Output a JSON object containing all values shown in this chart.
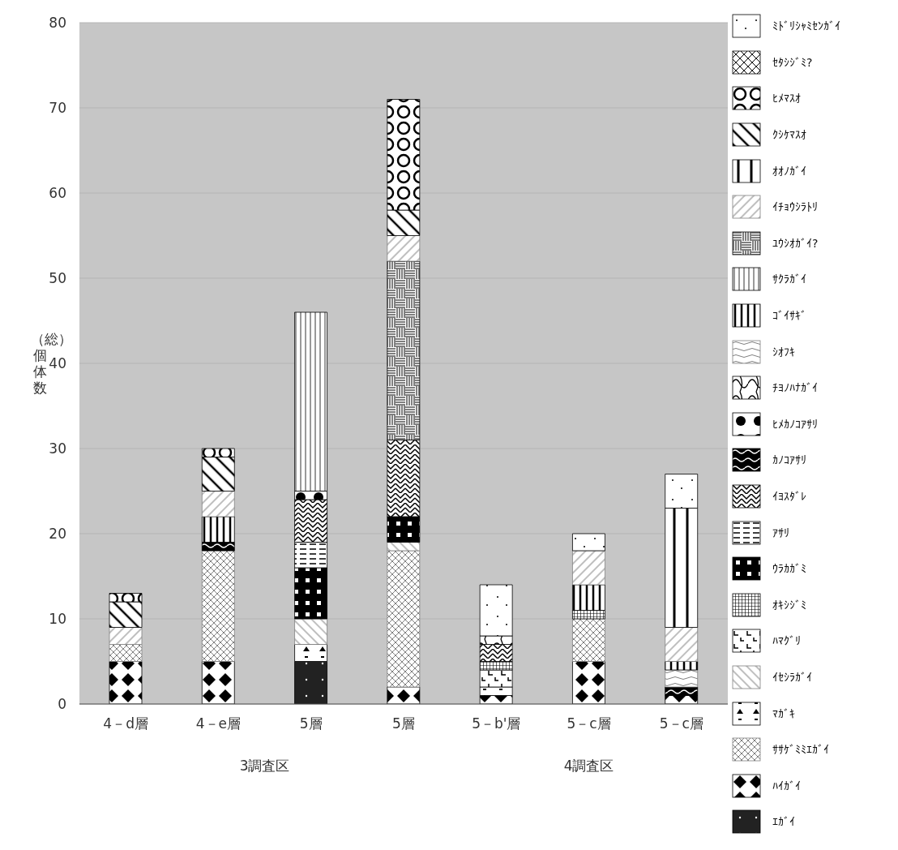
{
  "chart_data": {
    "type": "bar",
    "stacked": true,
    "ylabel": "（総）個体数",
    "categories": [
      "4－d層",
      "4－e層",
      "5層",
      "5層",
      "5－b'層",
      "5－c層",
      "5－c層"
    ],
    "annotations": [
      "3調査区",
      "4調査区"
    ],
    "ylim": [
      0,
      80
    ],
    "yticks": [
      0,
      10,
      20,
      30,
      40,
      50,
      60,
      70,
      80
    ],
    "grid": "y",
    "legend": "right",
    "series": [
      {
        "name": "ｴｶﾞｲ",
        "color": "#000000",
        "values": [
          null,
          null,
          5,
          null,
          null,
          null,
          null
        ]
      },
      {
        "name": "ﾊｲｶﾞｲ",
        "color": "#000000",
        "values": [
          5,
          5,
          null,
          2,
          1,
          5,
          1
        ]
      },
      {
        "name": "ｻｻｹﾞﾐﾐｴｶﾞｲ",
        "color": "#808080",
        "values": [
          2,
          13,
          null,
          16,
          null,
          5,
          null
        ]
      },
      {
        "name": "ﾏｶﾞｷ",
        "color": "#000000",
        "values": [
          null,
          null,
          2,
          null,
          1,
          null,
          null
        ]
      },
      {
        "name": "ｲｾｼﾗｶﾞｲ",
        "color": "#808080",
        "values": [
          null,
          null,
          3,
          1,
          null,
          null,
          null
        ]
      },
      {
        "name": "ﾊﾏｸﾞﾘ",
        "color": "#000000",
        "values": [
          null,
          null,
          null,
          null,
          2,
          null,
          null
        ]
      },
      {
        "name": "ｵｷｼｼﾞﾐ",
        "color": "#000000",
        "values": [
          null,
          null,
          null,
          null,
          1,
          1,
          null
        ]
      },
      {
        "name": "ｳﾗｶｶﾞﾐ",
        "color": "#000000",
        "values": [
          null,
          null,
          6,
          3,
          null,
          null,
          null
        ]
      },
      {
        "name": "ｱｻﾘ",
        "color": "#000000",
        "values": [
          null,
          null,
          3,
          null,
          null,
          null,
          null
        ]
      },
      {
        "name": "ｲﾖｽﾀﾞﾚ",
        "color": "#000000",
        "values": [
          null,
          null,
          5,
          9,
          2,
          null,
          null
        ]
      },
      {
        "name": "ｶﾉｺｱｻﾘ",
        "color": "#000000",
        "values": [
          null,
          1,
          null,
          null,
          null,
          null,
          1
        ]
      },
      {
        "name": "ﾋﾒｶﾉｺｱｻﾘ",
        "color": "#000000",
        "values": [
          null,
          null,
          1,
          null,
          null,
          null,
          null
        ]
      },
      {
        "name": "ﾁﾖﾉﾊﾅｶﾞｲ",
        "color": "#000000",
        "values": [
          null,
          null,
          null,
          null,
          1,
          null,
          null
        ]
      },
      {
        "name": "ｼｵﾌｷ",
        "color": "#808080",
        "values": [
          null,
          null,
          null,
          null,
          null,
          null,
          2
        ]
      },
      {
        "name": "ｺﾞｲｻｷﾞ",
        "color": "#000000",
        "values": [
          null,
          3,
          null,
          null,
          null,
          3,
          1
        ]
      },
      {
        "name": "ｻｸﾗｶﾞｲ",
        "color": "#000000",
        "values": [
          null,
          null,
          21,
          null,
          null,
          null,
          null
        ]
      },
      {
        "name": "ﾕｳｼｵｶﾞｲ?",
        "color": "#000000",
        "values": [
          null,
          null,
          null,
          21,
          null,
          null,
          null
        ]
      },
      {
        "name": "ｲﾁｮｳｼﾗﾄﾘ",
        "color": "#808080",
        "values": [
          2,
          3,
          null,
          3,
          null,
          4,
          4
        ]
      },
      {
        "name": "ｵｵﾉｶﾞｲ",
        "color": "#000000",
        "values": [
          null,
          null,
          null,
          null,
          null,
          null,
          14
        ]
      },
      {
        "name": "ｸｼｹﾏｽｵ",
        "color": "#000000",
        "values": [
          3,
          4,
          null,
          3,
          null,
          null,
          null
        ]
      },
      {
        "name": "ﾋﾒﾏｽｵ",
        "color": "#000000",
        "values": [
          1,
          1,
          null,
          13,
          null,
          null,
          null
        ]
      },
      {
        "name": "ｾﾀｼｼﾞﾐ?",
        "color": "#000000",
        "values": [
          null,
          null,
          null,
          null,
          null,
          null,
          null
        ]
      },
      {
        "name": "ﾐﾄﾞﾘｼｬﾐｾﾝｶﾞｲ",
        "color": "#000000",
        "values": [
          null,
          null,
          null,
          null,
          6,
          2,
          4
        ]
      }
    ]
  }
}
